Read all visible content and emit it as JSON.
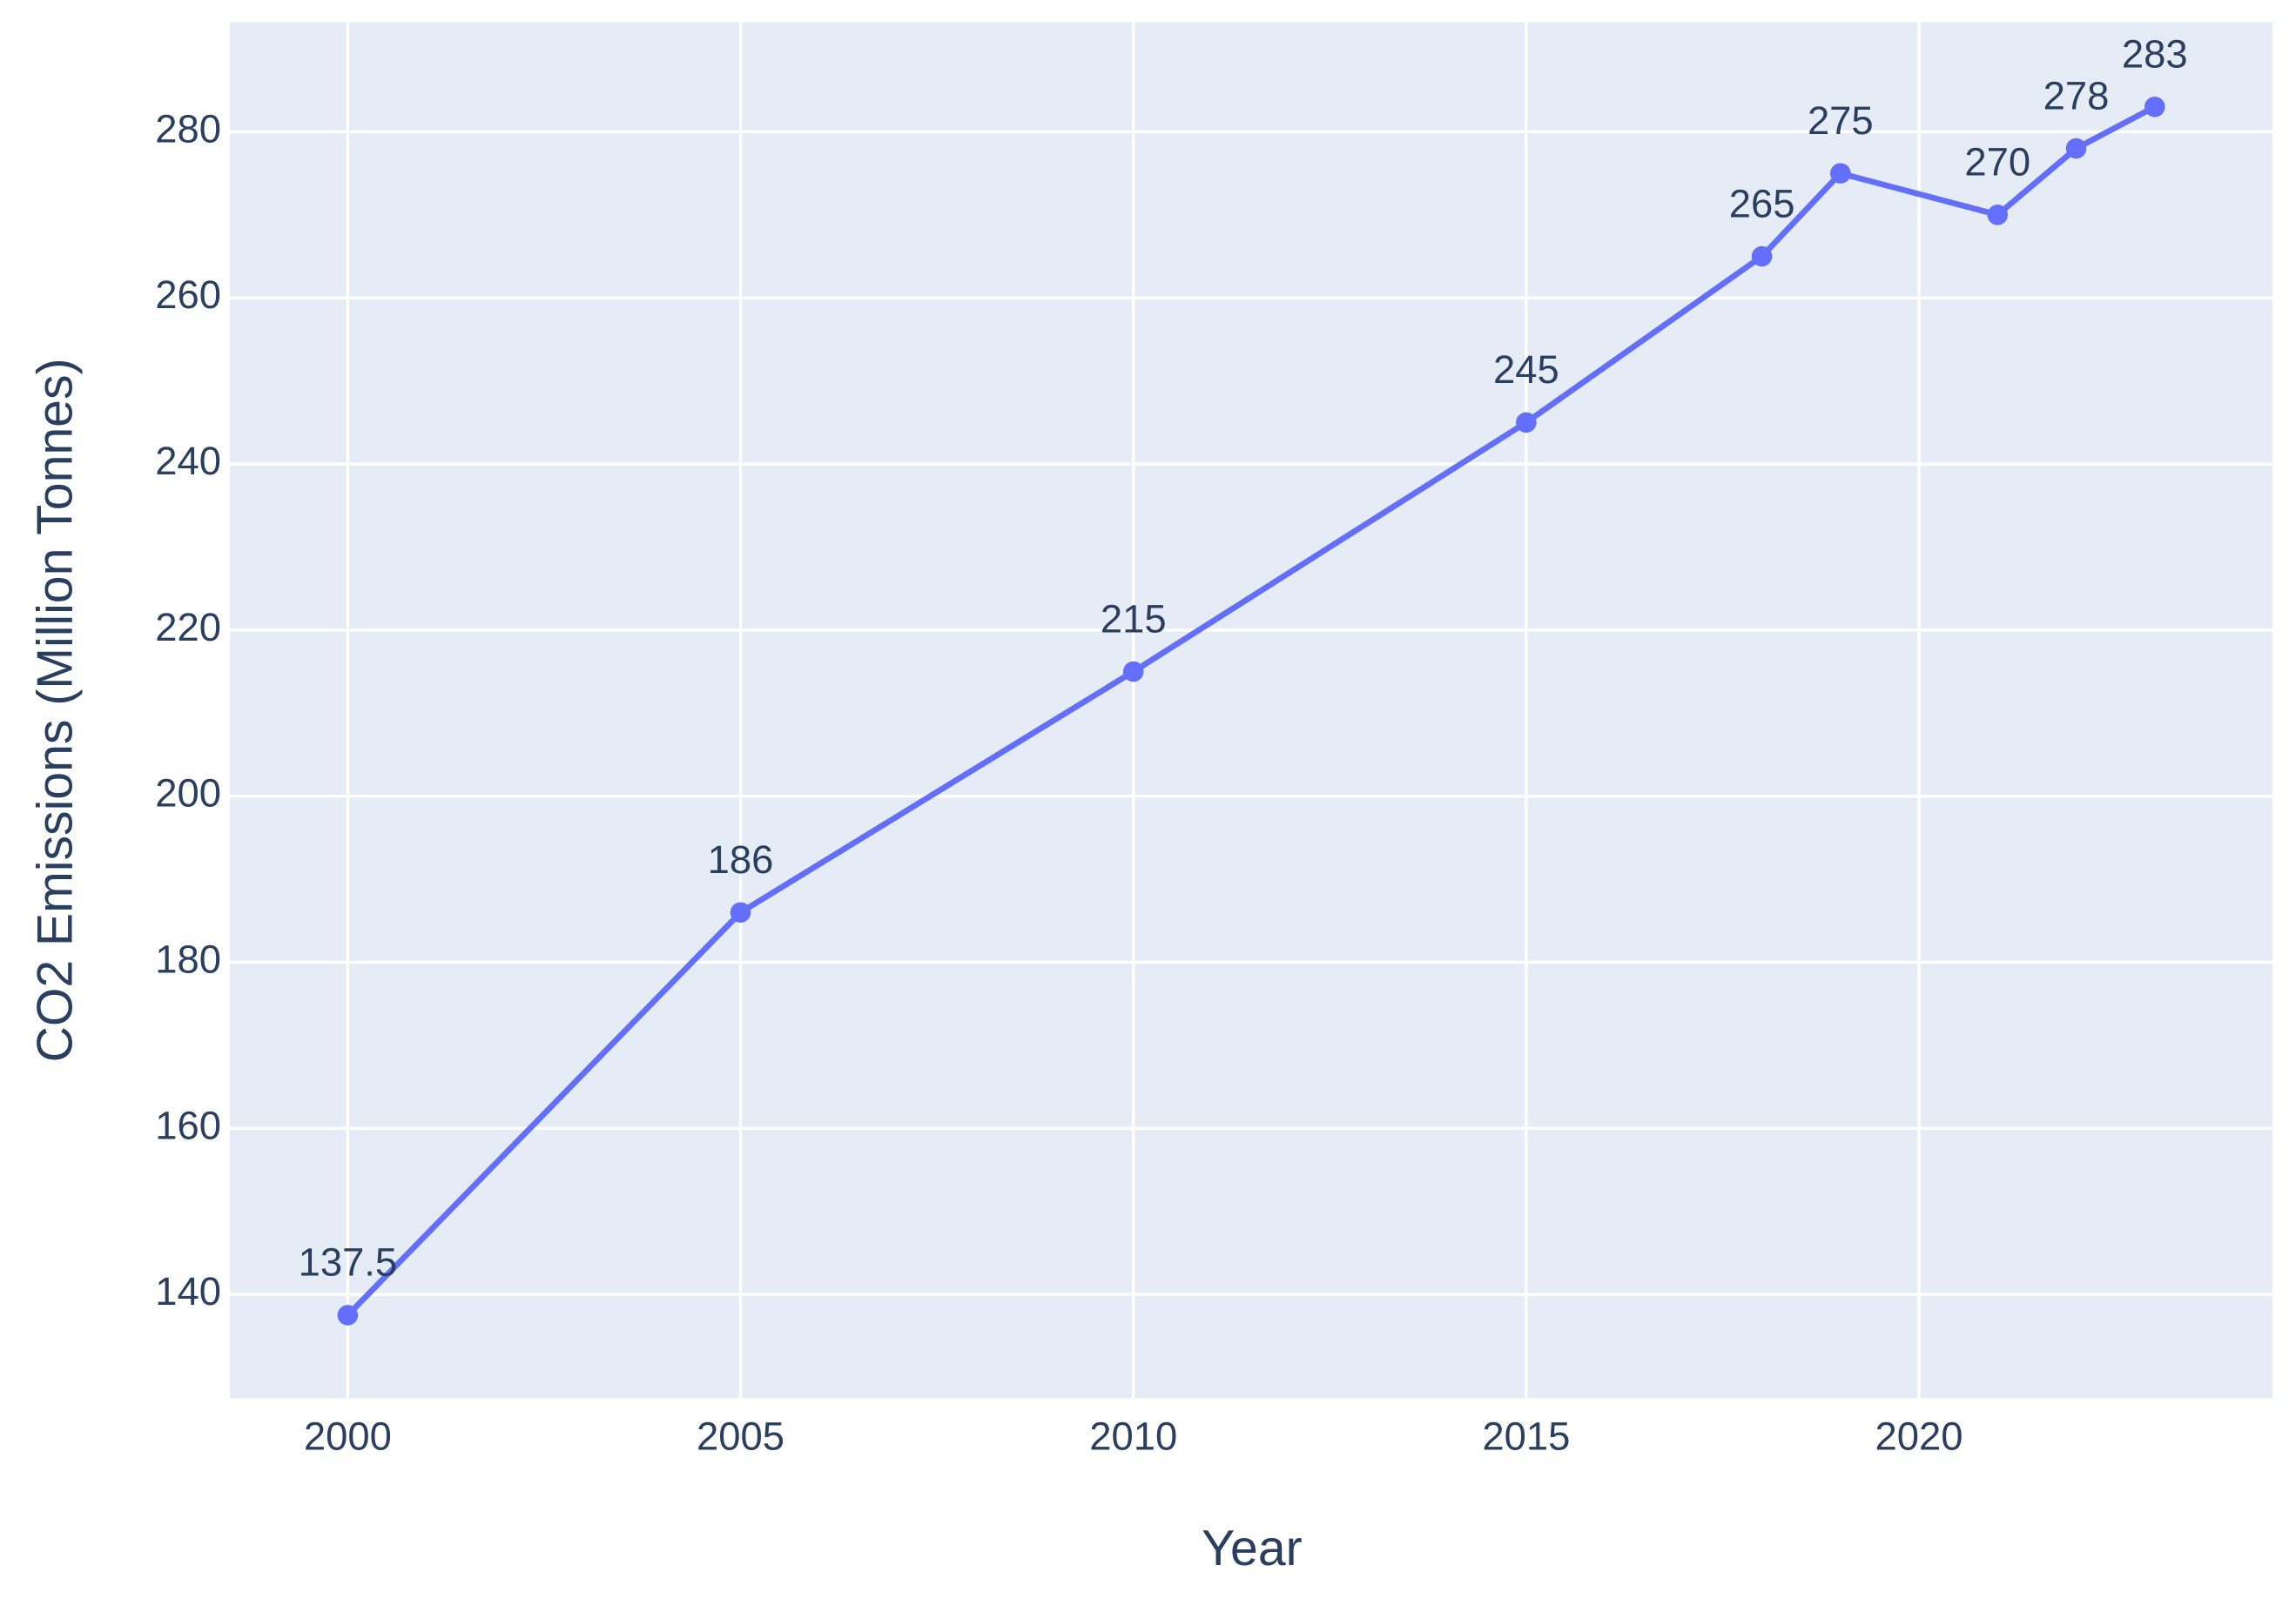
{
  "chart_data": {
    "type": "line",
    "x_label": "Year",
    "y_label": "CO2 Emissions (Million Tonnes)",
    "x": [
      2000,
      2005,
      2010,
      2015,
      2018,
      2019,
      2021,
      2022,
      2023
    ],
    "series": [
      {
        "color": "#636efa",
        "values": [
          137.5,
          186,
          215,
          245,
          265,
          275,
          270,
          278,
          283
        ]
      }
    ],
    "xlim": [
      1998.5,
      2024.5
    ],
    "xticks": [
      2000,
      2005,
      2010,
      2015,
      2020
    ],
    "ylim": [
      127.5,
      293.2
    ],
    "yticks": [
      140,
      160,
      180,
      200,
      220,
      240,
      260,
      280
    ],
    "grid": true,
    "data_labels": true
  }
}
